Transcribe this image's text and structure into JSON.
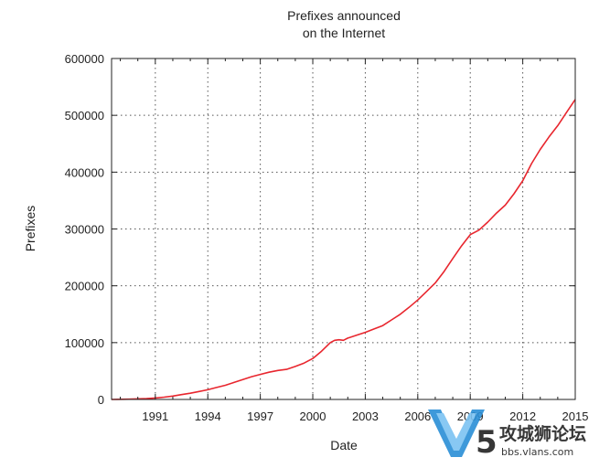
{
  "chart_data": {
    "type": "line",
    "title": [
      "Prefixes announced",
      "on the Internet"
    ],
    "xlabel": "Date",
    "ylabel": "Prefixes",
    "xlim": [
      1988.5,
      2015
    ],
    "ylim": [
      0,
      600000
    ],
    "x_ticks": [
      1991,
      1994,
      1997,
      2000,
      2003,
      2006,
      2009,
      2012,
      2015
    ],
    "y_ticks": [
      0,
      100000,
      200000,
      300000,
      400000,
      500000,
      600000
    ],
    "grid": true,
    "series_color": "#e8262e",
    "series": [
      {
        "x": [
          1988.5,
          1989.5,
          1990.5,
          1991.0,
          1991.5,
          1992.0,
          1992.5,
          1993.0,
          1993.5,
          1994.0,
          1994.5,
          1995.0,
          1995.5,
          1996.0,
          1996.5,
          1997.0,
          1997.5,
          1998.0,
          1998.5,
          1999.0,
          1999.5,
          2000.0,
          2000.5,
          2001.0,
          2001.25,
          2001.5,
          2001.75,
          2002.0,
          2002.5,
          2003.0,
          2003.5,
          2004.0,
          2004.5,
          2005.0,
          2005.5,
          2006.0,
          2006.5,
          2007.0,
          2007.5,
          2008.0,
          2008.5,
          2009.0,
          2009.5,
          2010.0,
          2010.5,
          2011.0,
          2011.5,
          2012.0,
          2012.5,
          2013.0,
          2013.5,
          2014.0,
          2014.5,
          2015.0
        ],
        "y": [
          0,
          500,
          1500,
          2500,
          4000,
          6000,
          8500,
          11000,
          14000,
          17000,
          21000,
          25000,
          30000,
          35000,
          40000,
          44000,
          48000,
          51000,
          53000,
          58000,
          64000,
          72000,
          85000,
          100000,
          104000,
          105000,
          104000,
          108000,
          113000,
          118000,
          124000,
          130000,
          140000,
          150000,
          162000,
          175000,
          190000,
          205000,
          225000,
          248000,
          270000,
          290000,
          298000,
          312000,
          328000,
          342000,
          362000,
          385000,
          415000,
          440000,
          462000,
          482000,
          505000,
          528000
        ]
      }
    ]
  },
  "watermark": {
    "site": "攻城狮论坛",
    "url": "bbs.vlans.com",
    "logo_color": "#2a8fd6"
  }
}
